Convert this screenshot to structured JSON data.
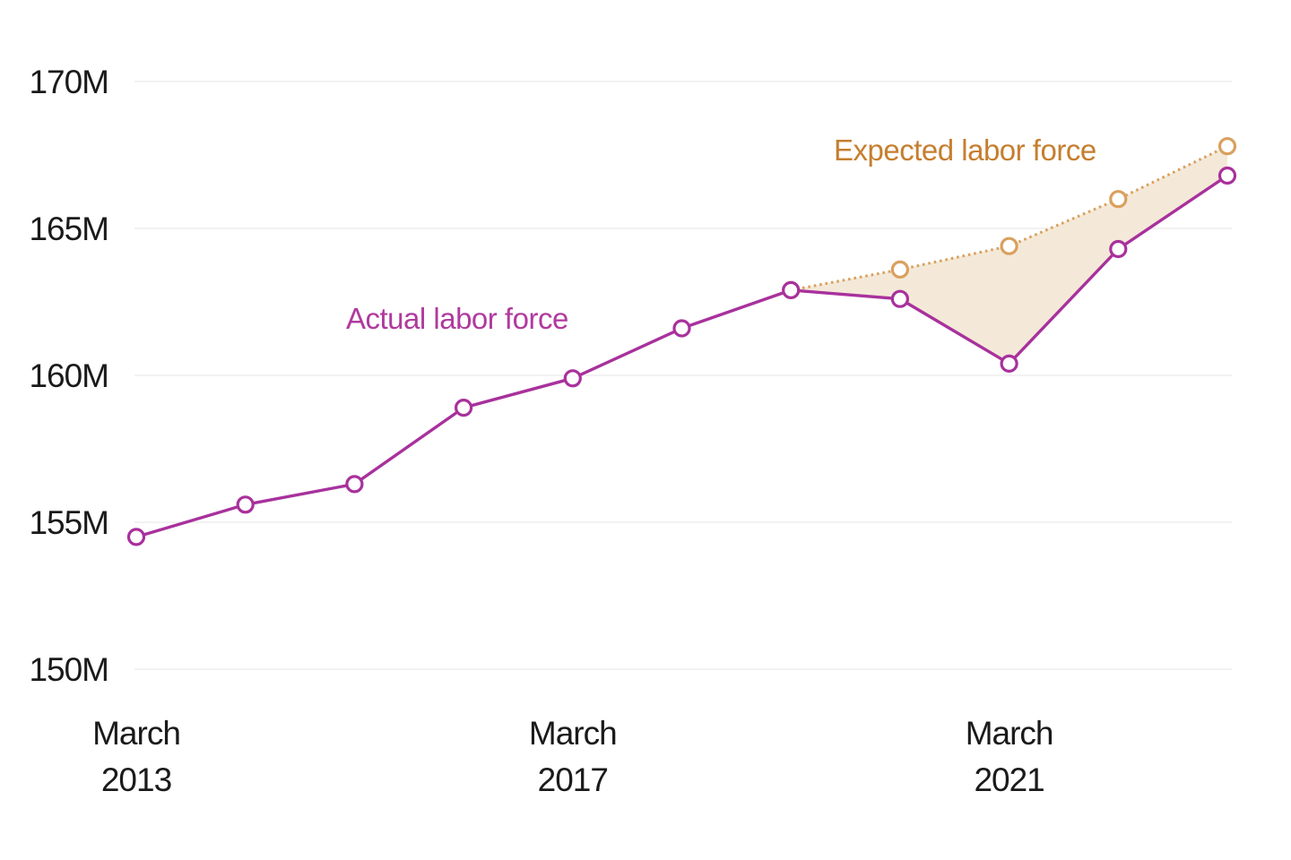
{
  "chart_data": {
    "type": "line",
    "title": "",
    "x_unit": "March of each year",
    "x": [
      2013,
      2014,
      2015,
      2016,
      2017,
      2018,
      2019,
      2020,
      2021,
      2022,
      2023
    ],
    "series": [
      {
        "name": "Actual labor force",
        "style": "solid",
        "color": "#a8319c",
        "label_color": "#b03a9e",
        "marker": "open-circle",
        "values": [
          154.5,
          155.6,
          156.3,
          158.9,
          159.9,
          161.6,
          162.9,
          162.6,
          160.4,
          164.3,
          166.8
        ]
      },
      {
        "name": "Expected labor force",
        "style": "dotted",
        "color": "#d9a05f",
        "label_color": "#c67e2f",
        "marker": "open-circle",
        "values": [
          null,
          null,
          null,
          null,
          null,
          null,
          162.9,
          163.6,
          164.4,
          166.0,
          167.8
        ]
      }
    ],
    "gap_band": {
      "fill": "#f4e9d8",
      "between": [
        "Expected labor force",
        "Actual labor force"
      ]
    },
    "ylim": [
      150,
      170
    ],
    "yticks": [
      {
        "value": 150,
        "label": "150M"
      },
      {
        "value": 155,
        "label": "155M"
      },
      {
        "value": 160,
        "label": "160M"
      },
      {
        "value": 165,
        "label": "165M"
      },
      {
        "value": 170,
        "label": "170M"
      }
    ],
    "xticks": [
      {
        "index": 0,
        "line1": "March",
        "line2": "2013"
      },
      {
        "index": 4,
        "line1": "March",
        "line2": "2017"
      },
      {
        "index": 8,
        "line1": "March",
        "line2": "2021"
      }
    ],
    "grid": "horizontal",
    "gridline_color": "#ebebeb",
    "axis_text_color": "#1a1a1a",
    "legend": "inline-annotations"
  }
}
